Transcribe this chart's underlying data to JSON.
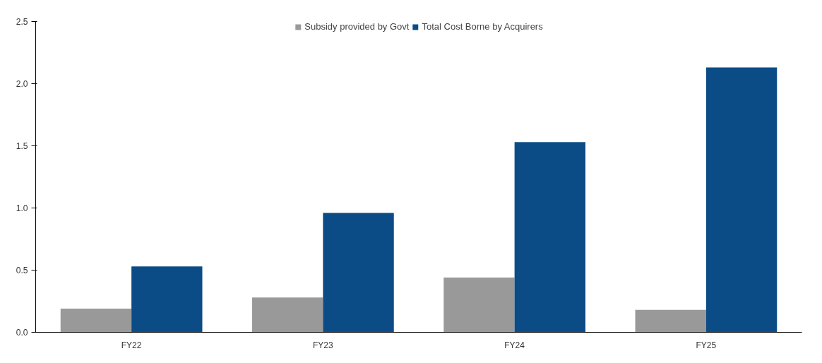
{
  "chart_data": {
    "type": "bar",
    "categories": [
      "FY22",
      "FY23",
      "FY24",
      "FY25"
    ],
    "series": [
      {
        "name": "Subsidy provided by Govt",
        "color": "#999999",
        "values": [
          0.19,
          0.28,
          0.44,
          0.18
        ]
      },
      {
        "name": "Total Cost Borne by Acquirers",
        "color": "#0b4c86",
        "values": [
          0.53,
          0.96,
          1.53,
          2.13
        ]
      }
    ],
    "ylim": [
      0,
      2.5
    ],
    "yticks": [
      {
        "value": 0,
        "label": "0.0"
      },
      {
        "value": 0.5,
        "label": "0.5"
      },
      {
        "value": 1,
        "label": "1.0"
      },
      {
        "value": 1.5,
        "label": "1.5"
      },
      {
        "value": 2,
        "label": "2.0"
      },
      {
        "value": 2.5,
        "label": "2.5"
      }
    ],
    "grid": false,
    "legend": "top"
  }
}
